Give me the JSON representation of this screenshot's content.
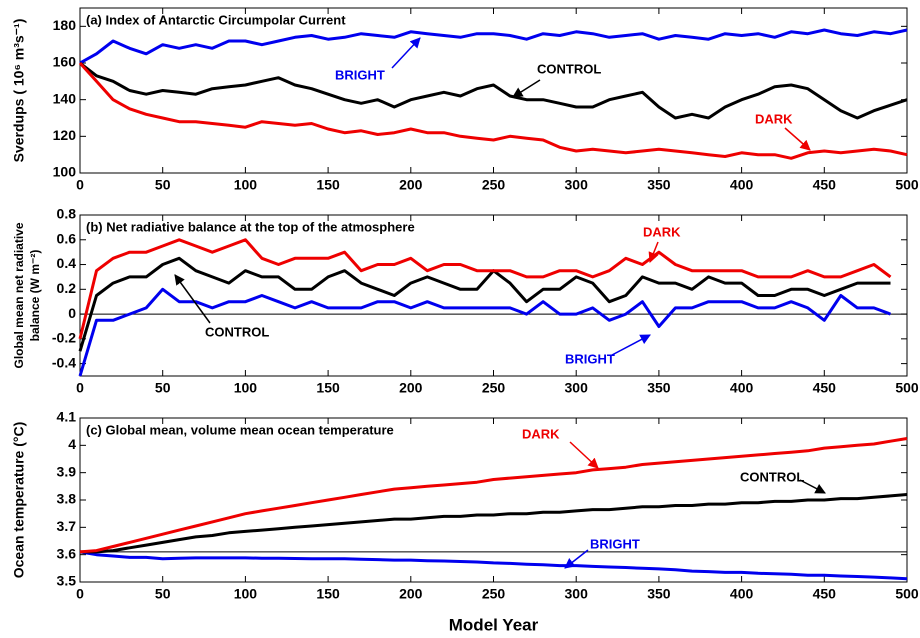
{
  "chart_data": [
    {
      "type": "line",
      "title": "(a) Index of Antarctic Circumpolar Current",
      "ylabel": [
        "Sverdups ( 10⁶ m³s⁻¹)"
      ],
      "x": [
        0,
        10,
        20,
        30,
        40,
        50,
        60,
        70,
        80,
        90,
        100,
        110,
        120,
        130,
        140,
        150,
        160,
        170,
        180,
        190,
        200,
        210,
        220,
        230,
        240,
        250,
        260,
        270,
        280,
        290,
        300,
        310,
        320,
        330,
        340,
        350,
        360,
        370,
        380,
        390,
        400,
        410,
        420,
        430,
        440,
        450,
        460,
        470,
        480,
        490,
        500
      ],
      "xlim": [
        0,
        500
      ],
      "xticks": [
        0,
        50,
        100,
        150,
        200,
        250,
        300,
        350,
        400,
        450,
        500
      ],
      "ylim": [
        100,
        190
      ],
      "yticks": [
        100,
        120,
        140,
        160,
        180
      ],
      "series": [
        {
          "name": "BRIGHT",
          "color": "#0000ee",
          "values": [
            160,
            165,
            172,
            168,
            165,
            170,
            168,
            170,
            168,
            172,
            172,
            170,
            172,
            174,
            175,
            173,
            174,
            176,
            175,
            174,
            177,
            176,
            175,
            174,
            176,
            176,
            175,
            173,
            176,
            175,
            177,
            176,
            174,
            175,
            176,
            173,
            175,
            174,
            173,
            176,
            175,
            176,
            174,
            177,
            176,
            178,
            176,
            175,
            177,
            176,
            178
          ]
        },
        {
          "name": "CONTROL",
          "color": "#000000",
          "values": [
            160,
            153,
            150,
            145,
            143,
            145,
            144,
            143,
            146,
            147,
            148,
            150,
            152,
            148,
            146,
            143,
            140,
            138,
            140,
            136,
            140,
            142,
            144,
            142,
            146,
            148,
            142,
            140,
            140,
            138,
            136,
            136,
            140,
            142,
            144,
            136,
            130,
            132,
            130,
            136,
            140,
            143,
            147,
            148,
            146,
            140,
            134,
            130,
            134,
            137,
            140
          ]
        },
        {
          "name": "DARK",
          "color": "#ee0000",
          "values": [
            160,
            150,
            140,
            135,
            132,
            130,
            128,
            128,
            127,
            126,
            125,
            128,
            127,
            126,
            127,
            124,
            122,
            123,
            121,
            122,
            124,
            122,
            122,
            120,
            119,
            118,
            120,
            119,
            118,
            114,
            112,
            113,
            112,
            111,
            112,
            113,
            112,
            111,
            110,
            109,
            111,
            110,
            110,
            108,
            111,
            112,
            111,
            112,
            113,
            112,
            110
          ]
        }
      ]
    },
    {
      "type": "line",
      "title": "(b) Net radiative balance at the top of the atmosphere",
      "ylabel": [
        "Global mean net radiative",
        "balance (W m⁻²)"
      ],
      "x": [
        0,
        10,
        20,
        30,
        40,
        50,
        60,
        70,
        80,
        90,
        100,
        110,
        120,
        130,
        140,
        150,
        160,
        170,
        180,
        190,
        200,
        210,
        220,
        230,
        240,
        250,
        260,
        270,
        280,
        290,
        300,
        310,
        320,
        330,
        340,
        350,
        360,
        370,
        380,
        390,
        400,
        410,
        420,
        430,
        440,
        450,
        460,
        470,
        480,
        490,
        500
      ],
      "xlim": [
        0,
        500
      ],
      "xticks": [
        0,
        50,
        100,
        150,
        200,
        250,
        300,
        350,
        400,
        450,
        500
      ],
      "ylim": [
        -0.5,
        0.8
      ],
      "yticks": [
        -0.4,
        -0.2,
        0,
        0.2,
        0.4,
        0.6,
        0.8
      ],
      "hline": 0,
      "series": [
        {
          "name": "BRIGHT",
          "color": "#0000ee",
          "values": [
            -0.5,
            -0.05,
            -0.05,
            0,
            0.05,
            0.2,
            0.1,
            0.1,
            0.05,
            0.1,
            0.1,
            0.15,
            0.1,
            0.05,
            0.1,
            0.05,
            0.05,
            0.05,
            0.1,
            0.1,
            0.05,
            0.1,
            0.05,
            0.05,
            0.05,
            0.05,
            0.05,
            0,
            0.1,
            0,
            0,
            0.05,
            -0.05,
            0,
            0.1,
            -0.1,
            0.05,
            0.05,
            0.1,
            0.1,
            0.1,
            0.05,
            0.05,
            0.1,
            0.05,
            -0.05,
            0.15,
            0.05,
            0.05,
            0,
            null
          ]
        },
        {
          "name": "CONTROL",
          "color": "#000000",
          "values": [
            -0.3,
            0.15,
            0.25,
            0.3,
            0.3,
            0.4,
            0.45,
            0.35,
            0.3,
            0.25,
            0.35,
            0.3,
            0.3,
            0.2,
            0.2,
            0.3,
            0.35,
            0.25,
            0.2,
            0.15,
            0.25,
            0.3,
            0.25,
            0.2,
            0.2,
            0.35,
            0.25,
            0.1,
            0.2,
            0.2,
            0.3,
            0.25,
            0.1,
            0.15,
            0.3,
            0.25,
            0.25,
            0.2,
            0.3,
            0.25,
            0.25,
            0.15,
            0.15,
            0.2,
            0.2,
            0.15,
            0.2,
            0.25,
            0.25,
            0.25,
            null
          ]
        },
        {
          "name": "DARK",
          "color": "#ee0000",
          "values": [
            -0.2,
            0.35,
            0.45,
            0.5,
            0.5,
            0.55,
            0.6,
            0.55,
            0.5,
            0.55,
            0.6,
            0.45,
            0.4,
            0.45,
            0.45,
            0.45,
            0.5,
            0.35,
            0.4,
            0.4,
            0.45,
            0.35,
            0.4,
            0.4,
            0.35,
            0.35,
            0.35,
            0.3,
            0.3,
            0.35,
            0.35,
            0.3,
            0.35,
            0.45,
            0.4,
            0.5,
            0.4,
            0.35,
            0.35,
            0.35,
            0.35,
            0.3,
            0.3,
            0.3,
            0.35,
            0.3,
            0.3,
            0.35,
            0.4,
            0.3,
            null
          ]
        }
      ]
    },
    {
      "type": "line",
      "title": "(c) Global mean, volume mean ocean temperature",
      "ylabel": [
        "Ocean temperature (°C)"
      ],
      "xlabel": "Model Year",
      "x": [
        0,
        10,
        20,
        30,
        40,
        50,
        60,
        70,
        80,
        90,
        100,
        110,
        120,
        130,
        140,
        150,
        160,
        170,
        180,
        190,
        200,
        210,
        220,
        230,
        240,
        250,
        260,
        270,
        280,
        290,
        300,
        310,
        320,
        330,
        340,
        350,
        360,
        370,
        380,
        390,
        400,
        410,
        420,
        430,
        440,
        450,
        460,
        470,
        480,
        490,
        500
      ],
      "xlim": [
        0,
        500
      ],
      "xticks": [
        0,
        50,
        100,
        150,
        200,
        250,
        300,
        350,
        400,
        450,
        500
      ],
      "ylim": [
        3.5,
        4.1
      ],
      "yticks": [
        3.5,
        3.6,
        3.7,
        3.8,
        3.9,
        4,
        4.1
      ],
      "hline": 3.61,
      "series": [
        {
          "name": "BRIGHT",
          "color": "#0000ee",
          "values": [
            3.61,
            3.6,
            3.595,
            3.59,
            3.59,
            3.585,
            3.587,
            3.588,
            3.588,
            3.588,
            3.588,
            3.587,
            3.587,
            3.586,
            3.585,
            3.585,
            3.585,
            3.583,
            3.582,
            3.58,
            3.58,
            3.578,
            3.577,
            3.575,
            3.573,
            3.57,
            3.568,
            3.565,
            3.563,
            3.56,
            3.56,
            3.557,
            3.555,
            3.553,
            3.55,
            3.548,
            3.545,
            3.54,
            3.538,
            3.535,
            3.535,
            3.532,
            3.53,
            3.528,
            3.525,
            3.525,
            3.522,
            3.52,
            3.518,
            3.515,
            3.512
          ]
        },
        {
          "name": "CONTROL",
          "color": "#000000",
          "values": [
            3.61,
            3.61,
            3.615,
            3.625,
            3.635,
            3.645,
            3.655,
            3.665,
            3.67,
            3.68,
            3.685,
            3.69,
            3.695,
            3.7,
            3.705,
            3.71,
            3.715,
            3.72,
            3.725,
            3.73,
            3.73,
            3.735,
            3.74,
            3.74,
            3.745,
            3.745,
            3.75,
            3.75,
            3.755,
            3.755,
            3.76,
            3.765,
            3.765,
            3.77,
            3.775,
            3.775,
            3.78,
            3.78,
            3.785,
            3.785,
            3.79,
            3.79,
            3.795,
            3.795,
            3.8,
            3.8,
            3.805,
            3.805,
            3.81,
            3.815,
            3.82
          ]
        },
        {
          "name": "DARK",
          "color": "#ee0000",
          "values": [
            3.61,
            3.615,
            3.63,
            3.645,
            3.66,
            3.675,
            3.69,
            3.705,
            3.72,
            3.735,
            3.75,
            3.76,
            3.77,
            3.78,
            3.79,
            3.8,
            3.81,
            3.82,
            3.83,
            3.84,
            3.845,
            3.85,
            3.855,
            3.86,
            3.865,
            3.875,
            3.88,
            3.885,
            3.89,
            3.895,
            3.9,
            3.91,
            3.915,
            3.92,
            3.93,
            3.935,
            3.94,
            3.945,
            3.95,
            3.955,
            3.96,
            3.965,
            3.97,
            3.975,
            3.98,
            3.99,
            3.995,
            4,
            4.005,
            4.015,
            4.025
          ]
        }
      ]
    }
  ]
}
